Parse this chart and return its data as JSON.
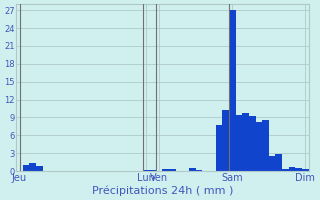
{
  "xlabel": "Précipitations 24h ( mm )",
  "background_color": "#cff0ee",
  "bar_color": "#1144cc",
  "grid_color": "#b0c8c8",
  "axis_label_color": "#4455bb",
  "ylim": [
    0,
    28
  ],
  "yticks": [
    0,
    3,
    6,
    9,
    12,
    15,
    18,
    21,
    24,
    27
  ],
  "day_labels": [
    "Jeu",
    "",
    "",
    "",
    "",
    "Lun",
    "Ven",
    "",
    "",
    "",
    "",
    "",
    "",
    "",
    "Sam",
    "",
    "",
    "",
    "",
    "",
    "",
    "Dim"
  ],
  "n_bars": 44,
  "bar_values": [
    0,
    1.0,
    1.3,
    0.9,
    0,
    0,
    0,
    0,
    0,
    0,
    0,
    0,
    0,
    0,
    0,
    0,
    0,
    0,
    0,
    0.2,
    0.15,
    0,
    0.4,
    0.3,
    0,
    0,
    0.5,
    0.2,
    0,
    0,
    7.8,
    10.2,
    27.0,
    9.4,
    9.7,
    9.2,
    8.2,
    8.5,
    2.5,
    2.8,
    0.4,
    0.7,
    0.5,
    0.4
  ],
  "day_tick_positions": [
    0,
    19,
    21,
    32,
    43
  ],
  "vline_positions": [
    0,
    18.5,
    20.5,
    31.5
  ]
}
